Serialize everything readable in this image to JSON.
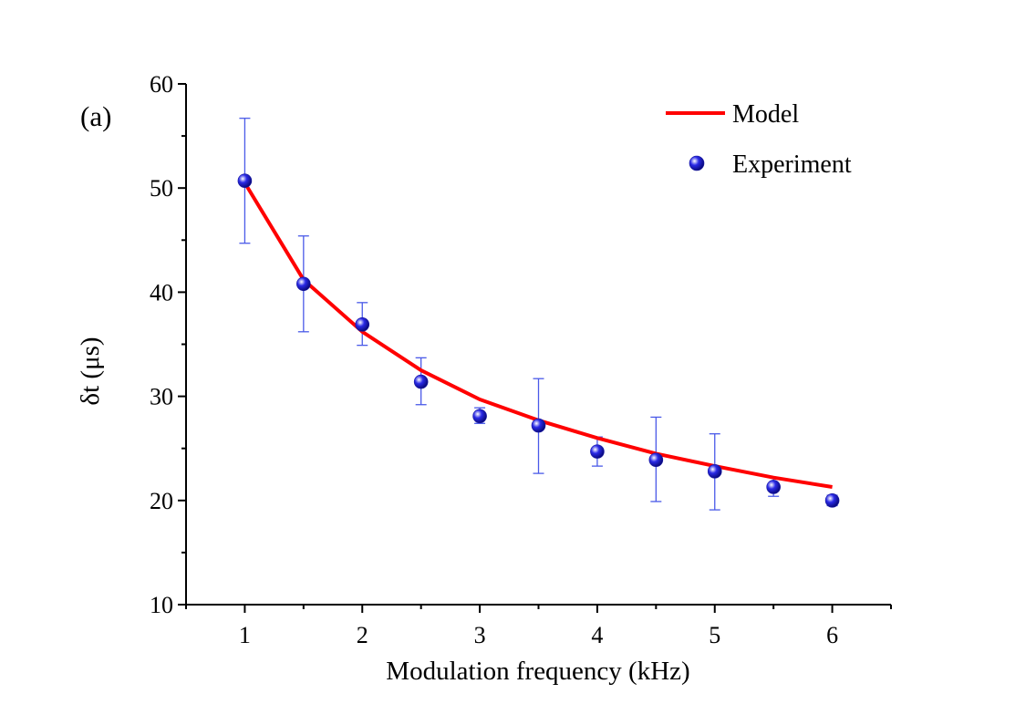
{
  "chart_data": {
    "type": "line",
    "panel_label": "(a)",
    "xlabel": "Modulation frequency (kHz)",
    "ylabel": "δt (μs)",
    "xlim": [
      0.5,
      6.5
    ],
    "ylim": [
      10,
      60
    ],
    "xticks": [
      1,
      2,
      3,
      4,
      5,
      6
    ],
    "yticks": [
      10,
      20,
      30,
      40,
      50,
      60
    ],
    "grid": false,
    "legend_position": "top-right",
    "series": [
      {
        "name": "Model",
        "kind": "line",
        "color": "#ff0000",
        "x": [
          1,
          1.5,
          2,
          2.5,
          3,
          3.5,
          4,
          4.5,
          5,
          5.5,
          6
        ],
        "y": [
          50.5,
          41.2,
          36.2,
          32.5,
          29.7,
          27.7,
          26.0,
          24.5,
          23.3,
          22.2,
          21.3
        ]
      },
      {
        "name": "Experiment",
        "kind": "scatter",
        "color": "#2a2ae6",
        "x": [
          1,
          1.5,
          2,
          2.5,
          3,
          3.5,
          4,
          4.5,
          5,
          5.5,
          6
        ],
        "y": [
          50.7,
          40.8,
          36.9,
          31.4,
          28.1,
          27.2,
          24.7,
          23.9,
          22.8,
          21.3,
          20.0
        ],
        "err_low": [
          44.7,
          36.2,
          34.9,
          29.2,
          27.4,
          22.6,
          23.3,
          19.9,
          19.1,
          20.4,
          19.5
        ],
        "err_high": [
          56.7,
          45.4,
          39.0,
          33.7,
          28.9,
          31.7,
          26.1,
          28.0,
          26.4,
          22.2,
          20.5
        ]
      }
    ]
  }
}
